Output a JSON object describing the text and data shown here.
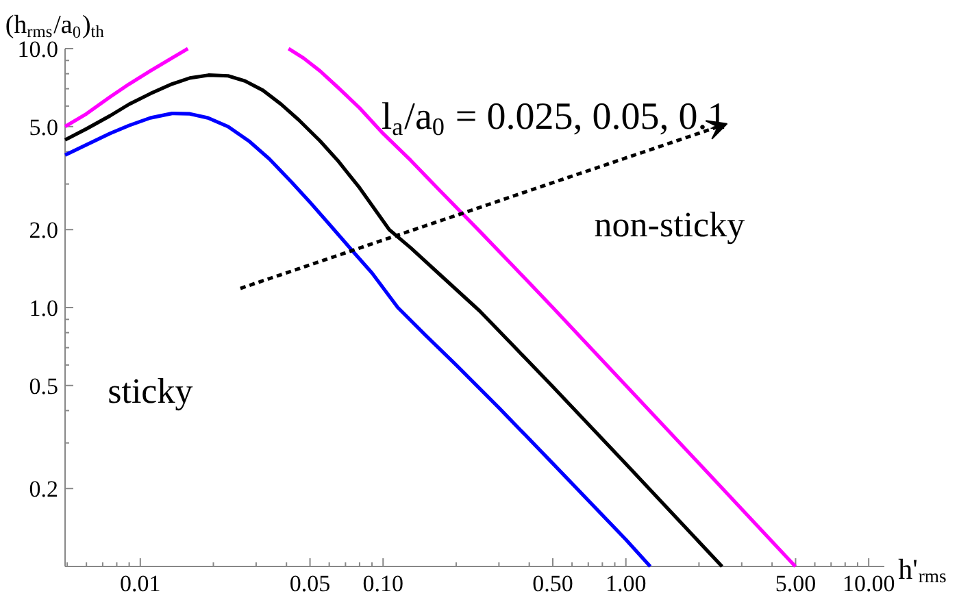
{
  "chart_data": {
    "type": "line",
    "xlabel": "h'$_{rms}$",
    "ylabel": "(h$_{rms}$/a$_{0}$)$_{th}$",
    "log": "xy",
    "grid": false,
    "line_style": "solid",
    "marker": "none",
    "xlim": [
      0.0049,
      11.6
    ],
    "ylim": [
      0.1,
      10
    ],
    "xticks": [
      0.01,
      0.05,
      {
        "value": 0.1,
        "label": "0.10"
      },
      {
        "value": 0.5,
        "label": "0.50"
      },
      {
        "value": 1,
        "label": "1.00"
      },
      {
        "value": 5,
        "label": "5.00"
      },
      {
        "value": 10,
        "label": "10.00"
      }
    ],
    "yticks": [
      0.2,
      0.5,
      {
        "value": 1,
        "label": "1.0"
      },
      {
        "value": 2,
        "label": "2.0"
      },
      {
        "value": 5,
        "label": "5.0"
      },
      {
        "value": 10,
        "label": "10.0"
      }
    ],
    "annotations": [
      "l$_{a}$/a$_{0}$ = 0.025, 0.05, 0.1",
      "sticky",
      "non-sticky"
    ],
    "series": [
      {
        "color": "#0000ff",
        "x": [
          0.0049,
          0.006,
          0.0075,
          0.009,
          0.011,
          0.0135,
          0.016,
          0.019,
          0.023,
          0.028,
          0.034,
          0.042,
          0.05,
          0.06,
          0.075,
          0.09,
          0.115,
          0.15,
          0.2,
          0.3,
          0.5,
          1.0,
          1.26
        ],
        "values": [
          3.88,
          4.25,
          4.7,
          5.05,
          5.4,
          5.62,
          5.6,
          5.4,
          5.0,
          4.4,
          3.75,
          3.05,
          2.55,
          2.1,
          1.65,
          1.36,
          1.0,
          0.78,
          0.6,
          0.41,
          0.25,
          0.127,
          0.1
        ]
      },
      {
        "color": "#000000",
        "x": [
          0.0049,
          0.006,
          0.0075,
          0.009,
          0.011,
          0.0135,
          0.016,
          0.0191,
          0.023,
          0.027,
          0.032,
          0.038,
          0.045,
          0.055,
          0.065,
          0.08,
          0.106,
          0.13,
          0.17,
          0.25,
          0.35,
          0.5,
          1.0,
          2.49
        ],
        "values": [
          4.44,
          4.9,
          5.5,
          6.1,
          6.7,
          7.3,
          7.7,
          7.9,
          7.85,
          7.5,
          6.9,
          6.1,
          5.3,
          4.4,
          3.7,
          2.9,
          2.0,
          1.7,
          1.35,
          0.97,
          0.7,
          0.495,
          0.249,
          0.1
        ]
      },
      {
        "color": "#ff00ff",
        "x": [
          0.0049,
          0.006,
          0.0075,
          0.009,
          0.011,
          0.0135,
          0.0157,
          0.025,
          0.0408,
          0.047,
          0.055,
          0.065,
          0.08,
          0.1,
          0.13,
          0.17,
          0.25,
          0.35,
          0.5,
          1.0,
          2.0,
          4.99
        ],
        "values": [
          5.0,
          5.6,
          6.5,
          7.3,
          8.2,
          9.2,
          10,
          null,
          10,
          9.2,
          8.2,
          7.1,
          5.9,
          4.7,
          3.7,
          2.85,
          1.97,
          1.42,
          1.0,
          0.5,
          0.25,
          0.1
        ]
      }
    ]
  }
}
